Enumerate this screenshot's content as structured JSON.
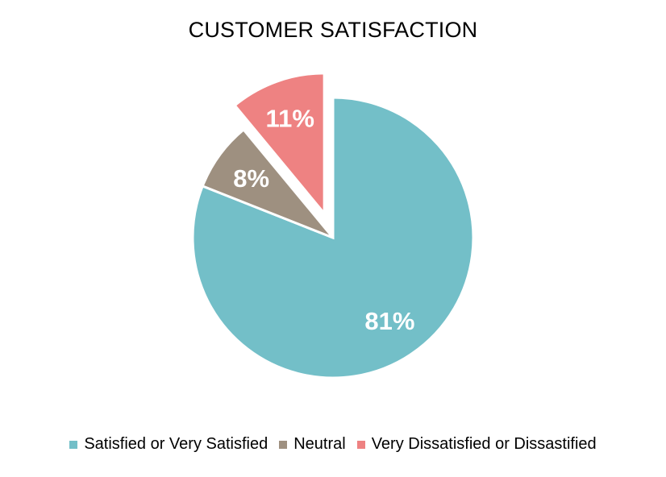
{
  "chart_data": {
    "type": "pie",
    "title": "CUSTOMER SATISFACTION",
    "slices": [
      {
        "label": "Satisfied or Very Satisfied",
        "value": 81,
        "data_label": "81%",
        "color": "#73BFC8",
        "exploded": false
      },
      {
        "label": "Neutral",
        "value": 8,
        "data_label": "8%",
        "color": "#9E9080",
        "exploded": false
      },
      {
        "label": "Very Dissatisfied or Dissastified",
        "value": 11,
        "data_label": "11%",
        "color": "#EE8282",
        "exploded": true
      }
    ],
    "legend": {
      "placement": "bottom",
      "entries": [
        "Satisfied or Very Satisfied",
        "Neutral",
        "Very Dissatisfied or Dissastified"
      ]
    }
  }
}
